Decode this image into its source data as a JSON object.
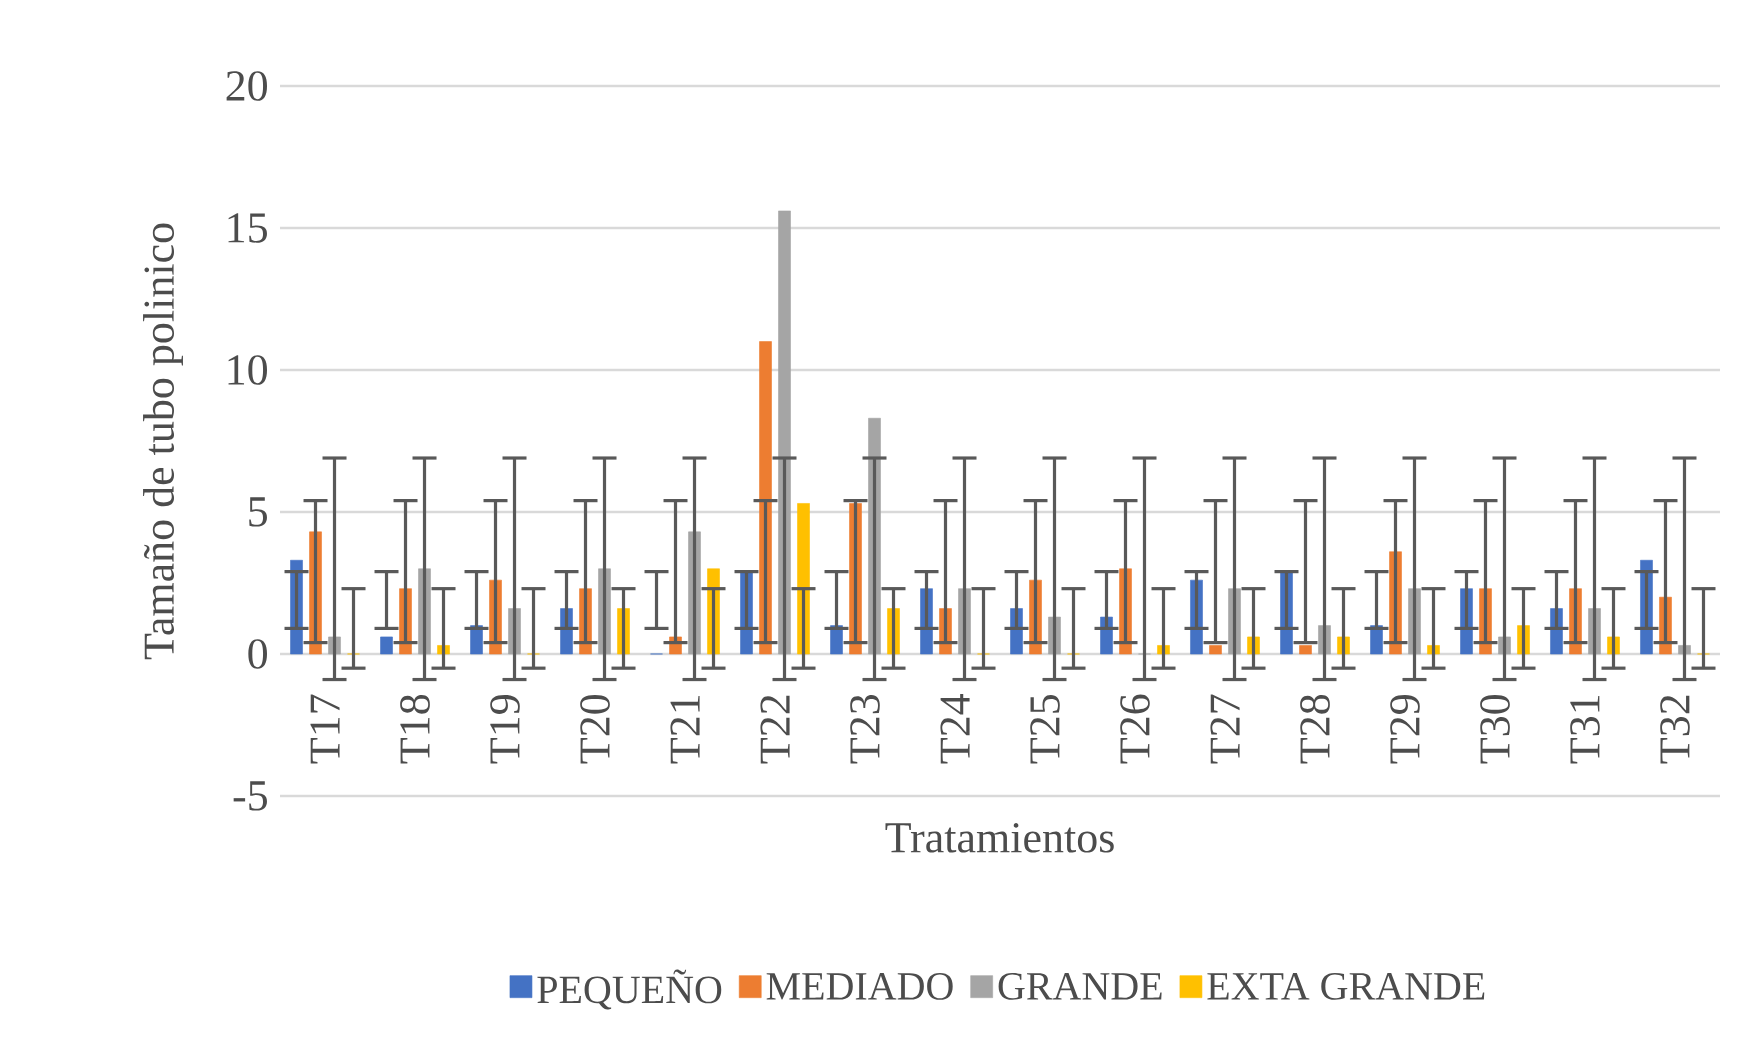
{
  "chart_data": {
    "type": "bar",
    "xlabel": "Tratamientos",
    "ylabel": "Tamaño de tubo polinico",
    "categories": [
      "T17",
      "T18",
      "T19",
      "T20",
      "T21",
      "T22",
      "T23",
      "T24",
      "T25",
      "T26",
      "T27",
      "T28",
      "T29",
      "T30",
      "T31",
      "T32"
    ],
    "series": [
      {
        "name": "PEQUEÑO",
        "color": "#4472c4",
        "values": [
          3.3,
          0.6,
          1.0,
          1.6,
          0,
          2.9,
          1.0,
          2.3,
          1.6,
          1.3,
          2.6,
          2.9,
          1.0,
          2.3,
          1.6,
          3.3
        ],
        "errors": [
          [
            0.9,
            2.9
          ],
          [
            0.9,
            2.9
          ],
          [
            0.9,
            2.9
          ],
          [
            0.9,
            2.9
          ],
          [
            0.9,
            2.9
          ],
          [
            0.9,
            2.9
          ],
          [
            0.9,
            2.9
          ],
          [
            0.9,
            2.9
          ],
          [
            0.9,
            2.9
          ],
          [
            0.9,
            2.9
          ],
          [
            0.9,
            2.9
          ],
          [
            0.9,
            2.9
          ],
          [
            0.9,
            2.9
          ],
          [
            0.9,
            2.9
          ],
          [
            0.9,
            2.9
          ],
          [
            0.9,
            2.9
          ]
        ]
      },
      {
        "name": "MEDIADO",
        "color": "#ed7d31",
        "values": [
          4.3,
          2.3,
          2.6,
          2.3,
          0.6,
          11.0,
          5.3,
          1.6,
          2.6,
          3.0,
          0.3,
          0.3,
          3.6,
          2.3,
          2.3,
          2.0
        ],
        "errors": [
          [
            0.4,
            5.4
          ],
          [
            0.4,
            5.4
          ],
          [
            0.4,
            5.4
          ],
          [
            0.4,
            5.4
          ],
          [
            0.4,
            5.4
          ],
          [
            0.4,
            5.4
          ],
          [
            0.4,
            5.4
          ],
          [
            0.4,
            5.4
          ],
          [
            0.4,
            5.4
          ],
          [
            0.4,
            5.4
          ],
          [
            0.4,
            5.4
          ],
          [
            0.4,
            5.4
          ],
          [
            0.4,
            5.4
          ],
          [
            0.4,
            5.4
          ],
          [
            0.4,
            5.4
          ],
          [
            0.4,
            5.4
          ]
        ]
      },
      {
        "name": "GRANDE",
        "color": "#a5a5a5",
        "values": [
          0.6,
          3.0,
          1.6,
          3.0,
          4.3,
          15.6,
          8.3,
          2.3,
          1.3,
          0,
          2.3,
          1.0,
          2.3,
          0.6,
          1.6,
          0.3
        ],
        "errors": [
          [
            -0.9,
            6.9
          ],
          [
            -0.9,
            6.9
          ],
          [
            -0.9,
            6.9
          ],
          [
            -0.9,
            6.9
          ],
          [
            -0.9,
            6.9
          ],
          [
            -0.9,
            6.9
          ],
          [
            -0.9,
            6.9
          ],
          [
            -0.9,
            6.9
          ],
          [
            -0.9,
            6.9
          ],
          [
            -0.9,
            6.9
          ],
          [
            -0.9,
            6.9
          ],
          [
            -0.9,
            6.9
          ],
          [
            -0.9,
            6.9
          ],
          [
            -0.9,
            6.9
          ],
          [
            -0.9,
            6.9
          ],
          [
            -0.9,
            6.9
          ]
        ]
      },
      {
        "name": "EXTA GRANDE",
        "color": "#ffc000",
        "values": [
          0,
          0.3,
          0,
          1.6,
          3.0,
          5.3,
          1.6,
          0,
          0,
          0.3,
          0.6,
          0.6,
          0.3,
          1.0,
          0.6,
          0
        ],
        "errors": [
          [
            -0.5,
            2.3
          ],
          [
            -0.5,
            2.3
          ],
          [
            -0.5,
            2.3
          ],
          [
            -0.5,
            2.3
          ],
          [
            -0.5,
            2.3
          ],
          [
            -0.5,
            2.3
          ],
          [
            -0.5,
            2.3
          ],
          [
            -0.5,
            2.3
          ],
          [
            -0.5,
            2.3
          ],
          [
            -0.5,
            2.3
          ],
          [
            -0.5,
            2.3
          ],
          [
            -0.5,
            2.3
          ],
          [
            -0.5,
            2.3
          ],
          [
            -0.5,
            2.3
          ],
          [
            -0.5,
            2.3
          ],
          [
            -0.5,
            2.3
          ]
        ]
      }
    ],
    "ylim": [
      -5,
      20
    ],
    "yticks": [
      -5,
      0,
      5,
      10,
      15,
      20
    ],
    "grid": "y",
    "legend": "bottom"
  }
}
